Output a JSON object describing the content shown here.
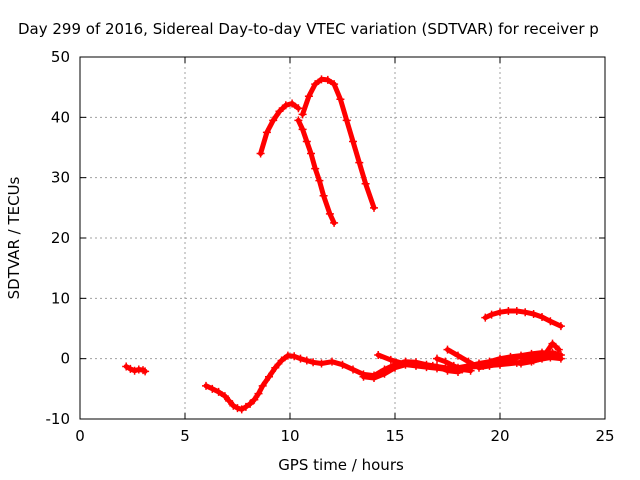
{
  "chart_data": {
    "type": "scatter",
    "title": "Day 299 of 2016, Sidereal Day-to-day VTEC variation (SDTVAR) for receiver p",
    "xlabel": "GPS time / hours",
    "ylabel": "SDTVAR / TECUs",
    "xlim": [
      0,
      25
    ],
    "ylim": [
      -10,
      50
    ],
    "x_ticks": [
      0,
      5,
      10,
      15,
      20,
      25
    ],
    "y_ticks": [
      -10,
      0,
      10,
      20,
      30,
      40,
      50
    ],
    "x_tick_labels": [
      "0",
      "5",
      "10",
      "15",
      "20",
      "25"
    ],
    "y_tick_labels": [
      "-10",
      "0",
      "10",
      "20",
      "30",
      "40",
      "50"
    ],
    "grid": true,
    "series_color": "#ff0000",
    "series": [
      {
        "x": [
          2.2,
          2.4,
          2.6,
          2.8,
          3.0,
          3.1
        ],
        "y": [
          -1.3,
          -1.7,
          -2.0,
          -1.8,
          -1.9,
          -2.1
        ]
      },
      {
        "x": [
          6.0,
          6.3,
          6.6,
          6.9,
          7.1,
          7.3,
          7.5,
          7.7,
          7.9,
          8.1,
          8.3,
          8.5,
          8.7,
          9.0,
          9.3,
          9.6,
          9.9,
          10.2,
          10.5,
          10.8,
          11.1,
          11.5,
          12.0,
          12.5,
          13.0,
          13.5,
          14.0,
          14.5,
          15.0,
          15.5,
          16.0,
          16.5,
          17.0,
          17.5,
          18.0,
          18.5,
          19.0,
          19.5,
          20.0,
          20.5,
          21.0,
          21.5,
          22.0,
          22.5,
          22.9
        ],
        "y": [
          -4.5,
          -5.0,
          -5.5,
          -6.2,
          -7.0,
          -7.8,
          -8.2,
          -8.4,
          -8.0,
          -7.5,
          -6.8,
          -5.8,
          -4.5,
          -3.0,
          -1.5,
          -0.3,
          0.5,
          0.4,
          0.0,
          -0.3,
          -0.6,
          -0.8,
          -0.5,
          -1.0,
          -1.8,
          -2.6,
          -2.8,
          -1.8,
          -1.0,
          -0.5,
          -0.6,
          -1.0,
          -1.3,
          -2.0,
          -2.2,
          -1.5,
          -1.0,
          -0.8,
          -0.5,
          0.0,
          0.3,
          0.2,
          0.5,
          1.0,
          0.6
        ]
      },
      {
        "x": [
          13.5,
          14.0,
          14.5,
          15.0,
          15.5,
          16.0,
          16.5,
          17.0,
          17.5,
          18.0,
          18.5,
          19.0,
          19.5,
          20.0,
          20.5,
          21.0,
          21.5,
          22.0,
          22.5
        ],
        "y": [
          -3.0,
          -3.2,
          -2.5,
          -1.5,
          -1.0,
          -1.2,
          -1.4,
          -1.6,
          -1.8,
          -1.5,
          -1.2,
          -0.8,
          -0.5,
          0.0,
          0.3,
          0.5,
          0.8,
          1.0,
          0.8
        ]
      },
      {
        "x": [
          14.2,
          14.8,
          15.4,
          16.0,
          16.8,
          17.6,
          18.4,
          19.2,
          20.0,
          20.8,
          21.6,
          22.4,
          22.9
        ],
        "y": [
          0.6,
          -0.2,
          -0.8,
          -1.0,
          -1.2,
          -1.6,
          -1.5,
          -1.2,
          -1.0,
          -0.7,
          -0.3,
          0.2,
          0.0
        ]
      },
      {
        "x": [
          17.0,
          17.4,
          17.8,
          18.2,
          18.6
        ],
        "y": [
          0.0,
          -0.5,
          -1.2,
          -1.8,
          -2.0
        ]
      },
      {
        "x": [
          17.5,
          18.0,
          18.5,
          19.0,
          19.5,
          20.0,
          20.5,
          21.0,
          21.5,
          22.0,
          22.5,
          22.8
        ],
        "y": [
          1.5,
          0.5,
          -0.5,
          -1.5,
          -1.2,
          -0.8,
          -0.5,
          -0.8,
          -0.5,
          0.0,
          2.5,
          1.5
        ]
      },
      {
        "x": [
          19.3,
          19.6,
          20.0,
          20.4,
          20.8,
          21.2,
          21.6,
          22.0,
          22.4,
          22.9
        ],
        "y": [
          6.8,
          7.3,
          7.7,
          7.9,
          7.9,
          7.7,
          7.4,
          6.9,
          6.2,
          5.4
        ]
      },
      {
        "x": [
          8.6,
          8.9,
          9.2,
          9.5,
          9.8,
          10.1,
          10.4
        ],
        "y": [
          34.0,
          37.5,
          39.5,
          41.0,
          42.0,
          42.3,
          41.5
        ]
      },
      {
        "x": [
          10.4,
          10.6,
          10.8,
          11.0,
          11.2,
          11.4,
          11.6,
          11.9,
          12.1
        ],
        "y": [
          39.5,
          38.0,
          36.0,
          34.0,
          31.5,
          29.5,
          27.0,
          24.0,
          22.5
        ]
      },
      {
        "x": [
          10.6,
          10.9,
          11.2,
          11.5,
          11.8,
          12.1,
          12.4,
          12.7,
          13.0,
          13.3,
          13.6,
          14.0
        ],
        "y": [
          40.5,
          43.5,
          45.5,
          46.3,
          46.2,
          45.5,
          43.0,
          39.5,
          36.0,
          32.5,
          29.0,
          25.0
        ]
      }
    ]
  }
}
